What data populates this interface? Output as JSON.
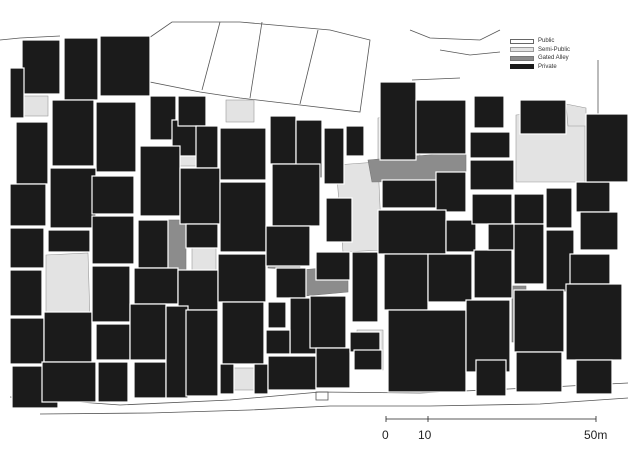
{
  "legend": {
    "items": [
      {
        "label": "Public",
        "fill": "#ffffff",
        "stroke": "#666666"
      },
      {
        "label": "Semi-Public",
        "fill": "#e3e3e3",
        "stroke": "#999999"
      },
      {
        "label": "Gated Alley",
        "fill": "#8c8c8c",
        "stroke": "#777777"
      },
      {
        "label": "Private",
        "fill": "#1b1b1b",
        "stroke": "#1b1b1b"
      }
    ]
  },
  "scale_bar": {
    "ticks": [
      "0",
      "10",
      "50m"
    ]
  },
  "colors": {
    "private": "#1b1b1b",
    "semi_public": "#e3e3e3",
    "gated_alley": "#8c8c8c",
    "public": "#ffffff",
    "outline": "#555555"
  }
}
